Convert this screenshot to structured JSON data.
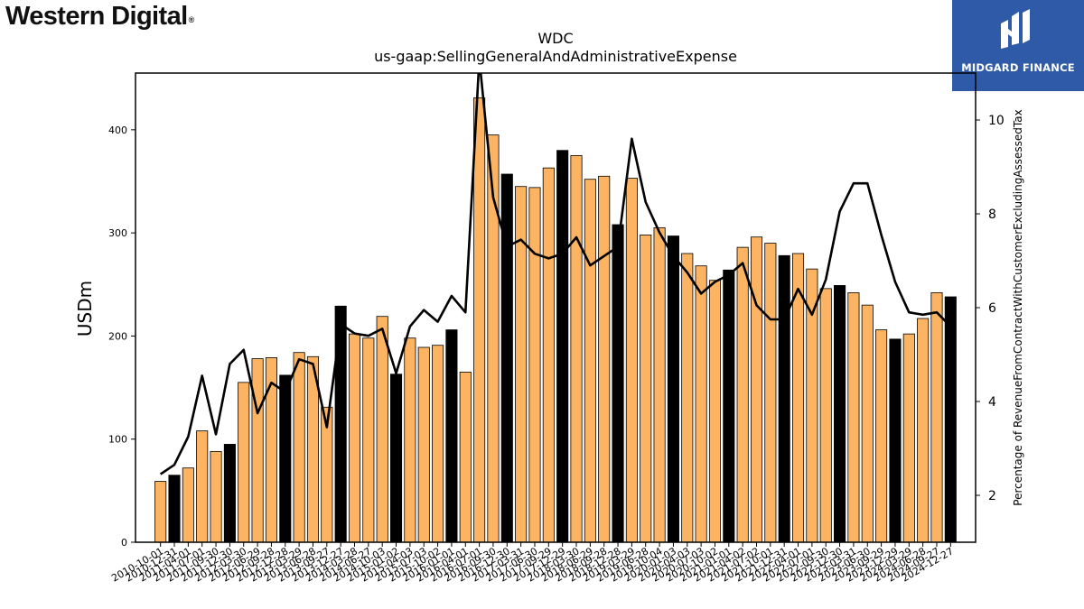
{
  "header": {
    "logo_text": "Western Digital",
    "logo_mark": "®",
    "publisher": "MIDGARD FINANCE",
    "publisher_icon": "midgard-m-logo-icon"
  },
  "chart_data": {
    "type": "bar",
    "title": "WDC",
    "subtitle": "us-gaap:SellingGeneralAndAdministrativeExpense",
    "ylabel": "USDm",
    "y2label": "Percentage of RevenueFromContractWithCustomerExcludingAssessedTax",
    "ylim": [
      0,
      455
    ],
    "y2lim": [
      1.0,
      11.0
    ],
    "yticks": [
      0,
      100,
      200,
      300,
      400
    ],
    "y2ticks": [
      2,
      4,
      6,
      8,
      10
    ],
    "colors": {
      "bar": "#fdb462",
      "bar_highlight": "#000000",
      "line": "#000000"
    },
    "categories": [
      "2010-10-01",
      "2010-12-31",
      "2011-04-01",
      "2011-07-01",
      "2011-09-30",
      "2011-12-30",
      "2012-03-30",
      "2012-06-29",
      "2012-09-28",
      "2012-12-28",
      "2013-03-29",
      "2013-06-28",
      "2013-09-27",
      "2013-12-27",
      "2014-03-28",
      "2014-06-27",
      "2014-10-03",
      "2015-01-02",
      "2015-04-03",
      "2015-07-03",
      "2015-10-02",
      "2016-01-01",
      "2016-04-01",
      "2016-07-01",
      "2016-09-30",
      "2016-12-30",
      "2017-03-31",
      "2017-06-30",
      "2017-09-29",
      "2017-12-29",
      "2018-03-30",
      "2018-06-29",
      "2018-09-28",
      "2018-12-28",
      "2019-03-29",
      "2019-06-28",
      "2019-10-04",
      "2020-01-03",
      "2020-04-03",
      "2020-07-03",
      "2020-10-02",
      "2021-01-01",
      "2021-04-02",
      "2021-07-02",
      "2021-10-01",
      "2021-12-31",
      "2022-04-01",
      "2022-07-01",
      "2022-09-30",
      "2022-12-30",
      "2023-03-31",
      "2023-06-30",
      "2023-09-29",
      "2023-12-29",
      "2024-03-29",
      "2024-06-28",
      "2024-09-27",
      "2024-12-27"
    ],
    "tick_labels": [
      "2010-10-01",
      "2010-12-31",
      "2011-04-01",
      "2011-07-01",
      "2011-09-30",
      "2011-12-30",
      "2012-03-30",
      "2012-06-29",
      "2012-09-28",
      "2012-12-28",
      "2013-03-29",
      "2013-06-28",
      "2013-09-27",
      "2013-12-27",
      "2014-03-28",
      "2014-06-27",
      "2014-10-03",
      "2015-01-02",
      "2015-04-03",
      "2015-07-03",
      "2015-10-02",
      "2016-01-01",
      "2016-04-01",
      "2016-07-01",
      "2016-09-30",
      "2016-12-30",
      "2017-03-31",
      "2017-06-30",
      "2017-09-29",
      "2017-12-29",
      "2018-03-30",
      "2018-06-29",
      "2018-09-28",
      "2018-12-28",
      "2019-03-29",
      "2019-06-28",
      "2019-10-04",
      "2020-01-03",
      "2020-04-03",
      "2020-07-03",
      "2020-10-02",
      "2021-01-01",
      "2021-04-02",
      "2021-07-02",
      "2021-10-01",
      "2021-12-31",
      "2022-04-01",
      "2022-07-01",
      "2022-09-30",
      "2022-12-30",
      "2023-03-31",
      "2023-06-30",
      "2023-09-29",
      "2023-12-29",
      "2024-03-29",
      "2024-06-28",
      "2024-09-27",
      "2024-12-27"
    ],
    "series": [
      {
        "type": "bar",
        "axis": "left",
        "values": [
          59,
          65,
          72,
          108,
          88,
          95,
          155,
          178,
          179,
          162,
          184,
          180,
          131,
          229,
          202,
          198,
          219,
          163,
          198,
          189,
          191,
          206,
          165,
          431,
          395,
          357,
          345,
          344,
          363,
          380,
          375,
          352,
          355,
          308,
          353,
          298,
          305,
          297,
          280,
          268,
          254,
          264,
          286,
          296,
          290,
          278,
          280,
          265,
          246,
          249,
          242,
          230,
          206,
          197,
          202,
          217,
          242,
          238
        ],
        "highlight": [
          false,
          true,
          false,
          false,
          false,
          true,
          false,
          false,
          false,
          true,
          false,
          false,
          false,
          true,
          false,
          false,
          false,
          true,
          false,
          false,
          false,
          true,
          false,
          false,
          false,
          true,
          false,
          false,
          false,
          true,
          false,
          false,
          false,
          true,
          false,
          false,
          false,
          true,
          false,
          false,
          false,
          true,
          false,
          false,
          false,
          true,
          false,
          false,
          false,
          true,
          false,
          false,
          false,
          true,
          false,
          false,
          false,
          true
        ]
      },
      {
        "type": "line",
        "axis": "right",
        "values": [
          2.45,
          2.65,
          3.25,
          4.55,
          3.3,
          4.8,
          5.1,
          3.75,
          4.4,
          4.2,
          4.9,
          4.8,
          3.45,
          5.65,
          5.45,
          5.4,
          5.55,
          4.6,
          5.6,
          5.95,
          5.7,
          6.25,
          5.9,
          11.3,
          8.35,
          7.3,
          7.45,
          7.15,
          7.05,
          7.15,
          7.5,
          6.9,
          7.1,
          7.3,
          9.6,
          8.25,
          7.6,
          7.1,
          6.75,
          6.3,
          6.55,
          6.7,
          6.95,
          6.05,
          5.75,
          5.75,
          6.4,
          5.85,
          6.6,
          8.05,
          8.65,
          8.65,
          7.55,
          6.55,
          5.9,
          5.85,
          5.9,
          5.6
        ]
      }
    ]
  }
}
